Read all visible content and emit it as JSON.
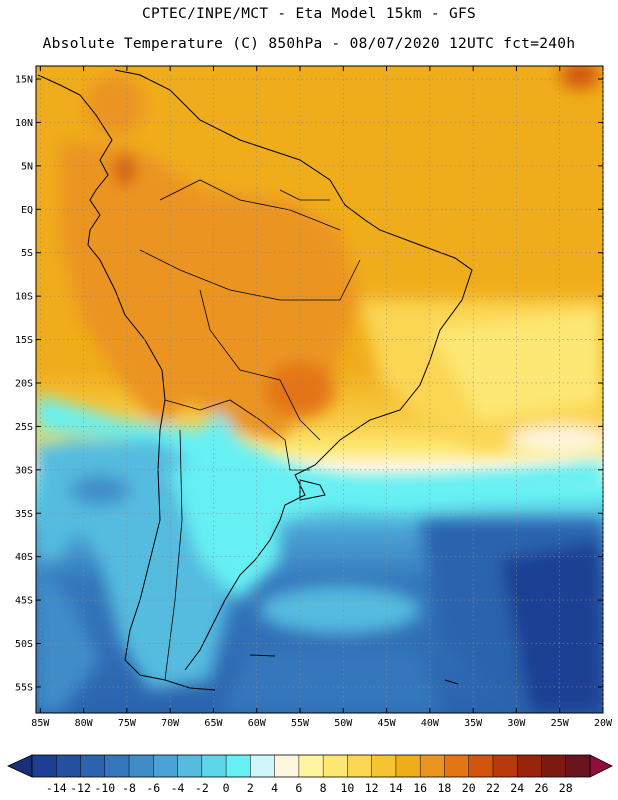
{
  "header": {
    "line1": "CPTEC/INPE/MCT -  Eta Model 15km - GFS",
    "line2": "Absolute Temperature (C) 850hPa - 08/07/2020 12UTC fct=240h"
  },
  "map": {
    "lat_labels": [
      "15N",
      "10N",
      "5N",
      "EQ",
      "5S",
      "10S",
      "15S",
      "20S",
      "25S",
      "30S",
      "35S",
      "40S",
      "45S",
      "50S",
      "55S"
    ],
    "lat_values": [
      15,
      10,
      5,
      0,
      -5,
      -10,
      -15,
      -20,
      -25,
      -30,
      -35,
      -40,
      -45,
      -50,
      -55
    ],
    "lon_labels": [
      "85W",
      "80W",
      "75W",
      "70W",
      "65W",
      "60W",
      "55W",
      "50W",
      "45W",
      "40W",
      "35W",
      "30W",
      "25W",
      "20W"
    ],
    "lon_values": [
      -85,
      -80,
      -75,
      -70,
      -65,
      -60,
      -55,
      -50,
      -45,
      -40,
      -35,
      -30,
      -25,
      -20
    ],
    "lat_range": [
      -58,
      16.5
    ],
    "lon_range": [
      -85.5,
      -20
    ]
  },
  "colorbar": {
    "labels": [
      "-14",
      "-12",
      "-10",
      "-8",
      "-6",
      "-4",
      "-2",
      "0",
      "2",
      "4",
      "6",
      "8",
      "10",
      "12",
      "14",
      "16",
      "18",
      "20",
      "22",
      "24",
      "26",
      "28"
    ],
    "colors": [
      "#1c3f93",
      "#25509f",
      "#2b63ae",
      "#3477bc",
      "#3f8cc9",
      "#4aa3d4",
      "#55bbdf",
      "#5ed5e9",
      "#66f0f3",
      "#d0f6fb",
      "#fff6e0",
      "#fff5a0",
      "#fde874",
      "#fbd653",
      "#f6c433",
      "#f0ad1b",
      "#eb9420",
      "#e47512",
      "#d2540e",
      "#b8390b",
      "#98240c",
      "#7b1a10",
      "#6a1420"
    ],
    "low_color": "#1a2f7a",
    "high_color": "#8e0e3f"
  }
}
